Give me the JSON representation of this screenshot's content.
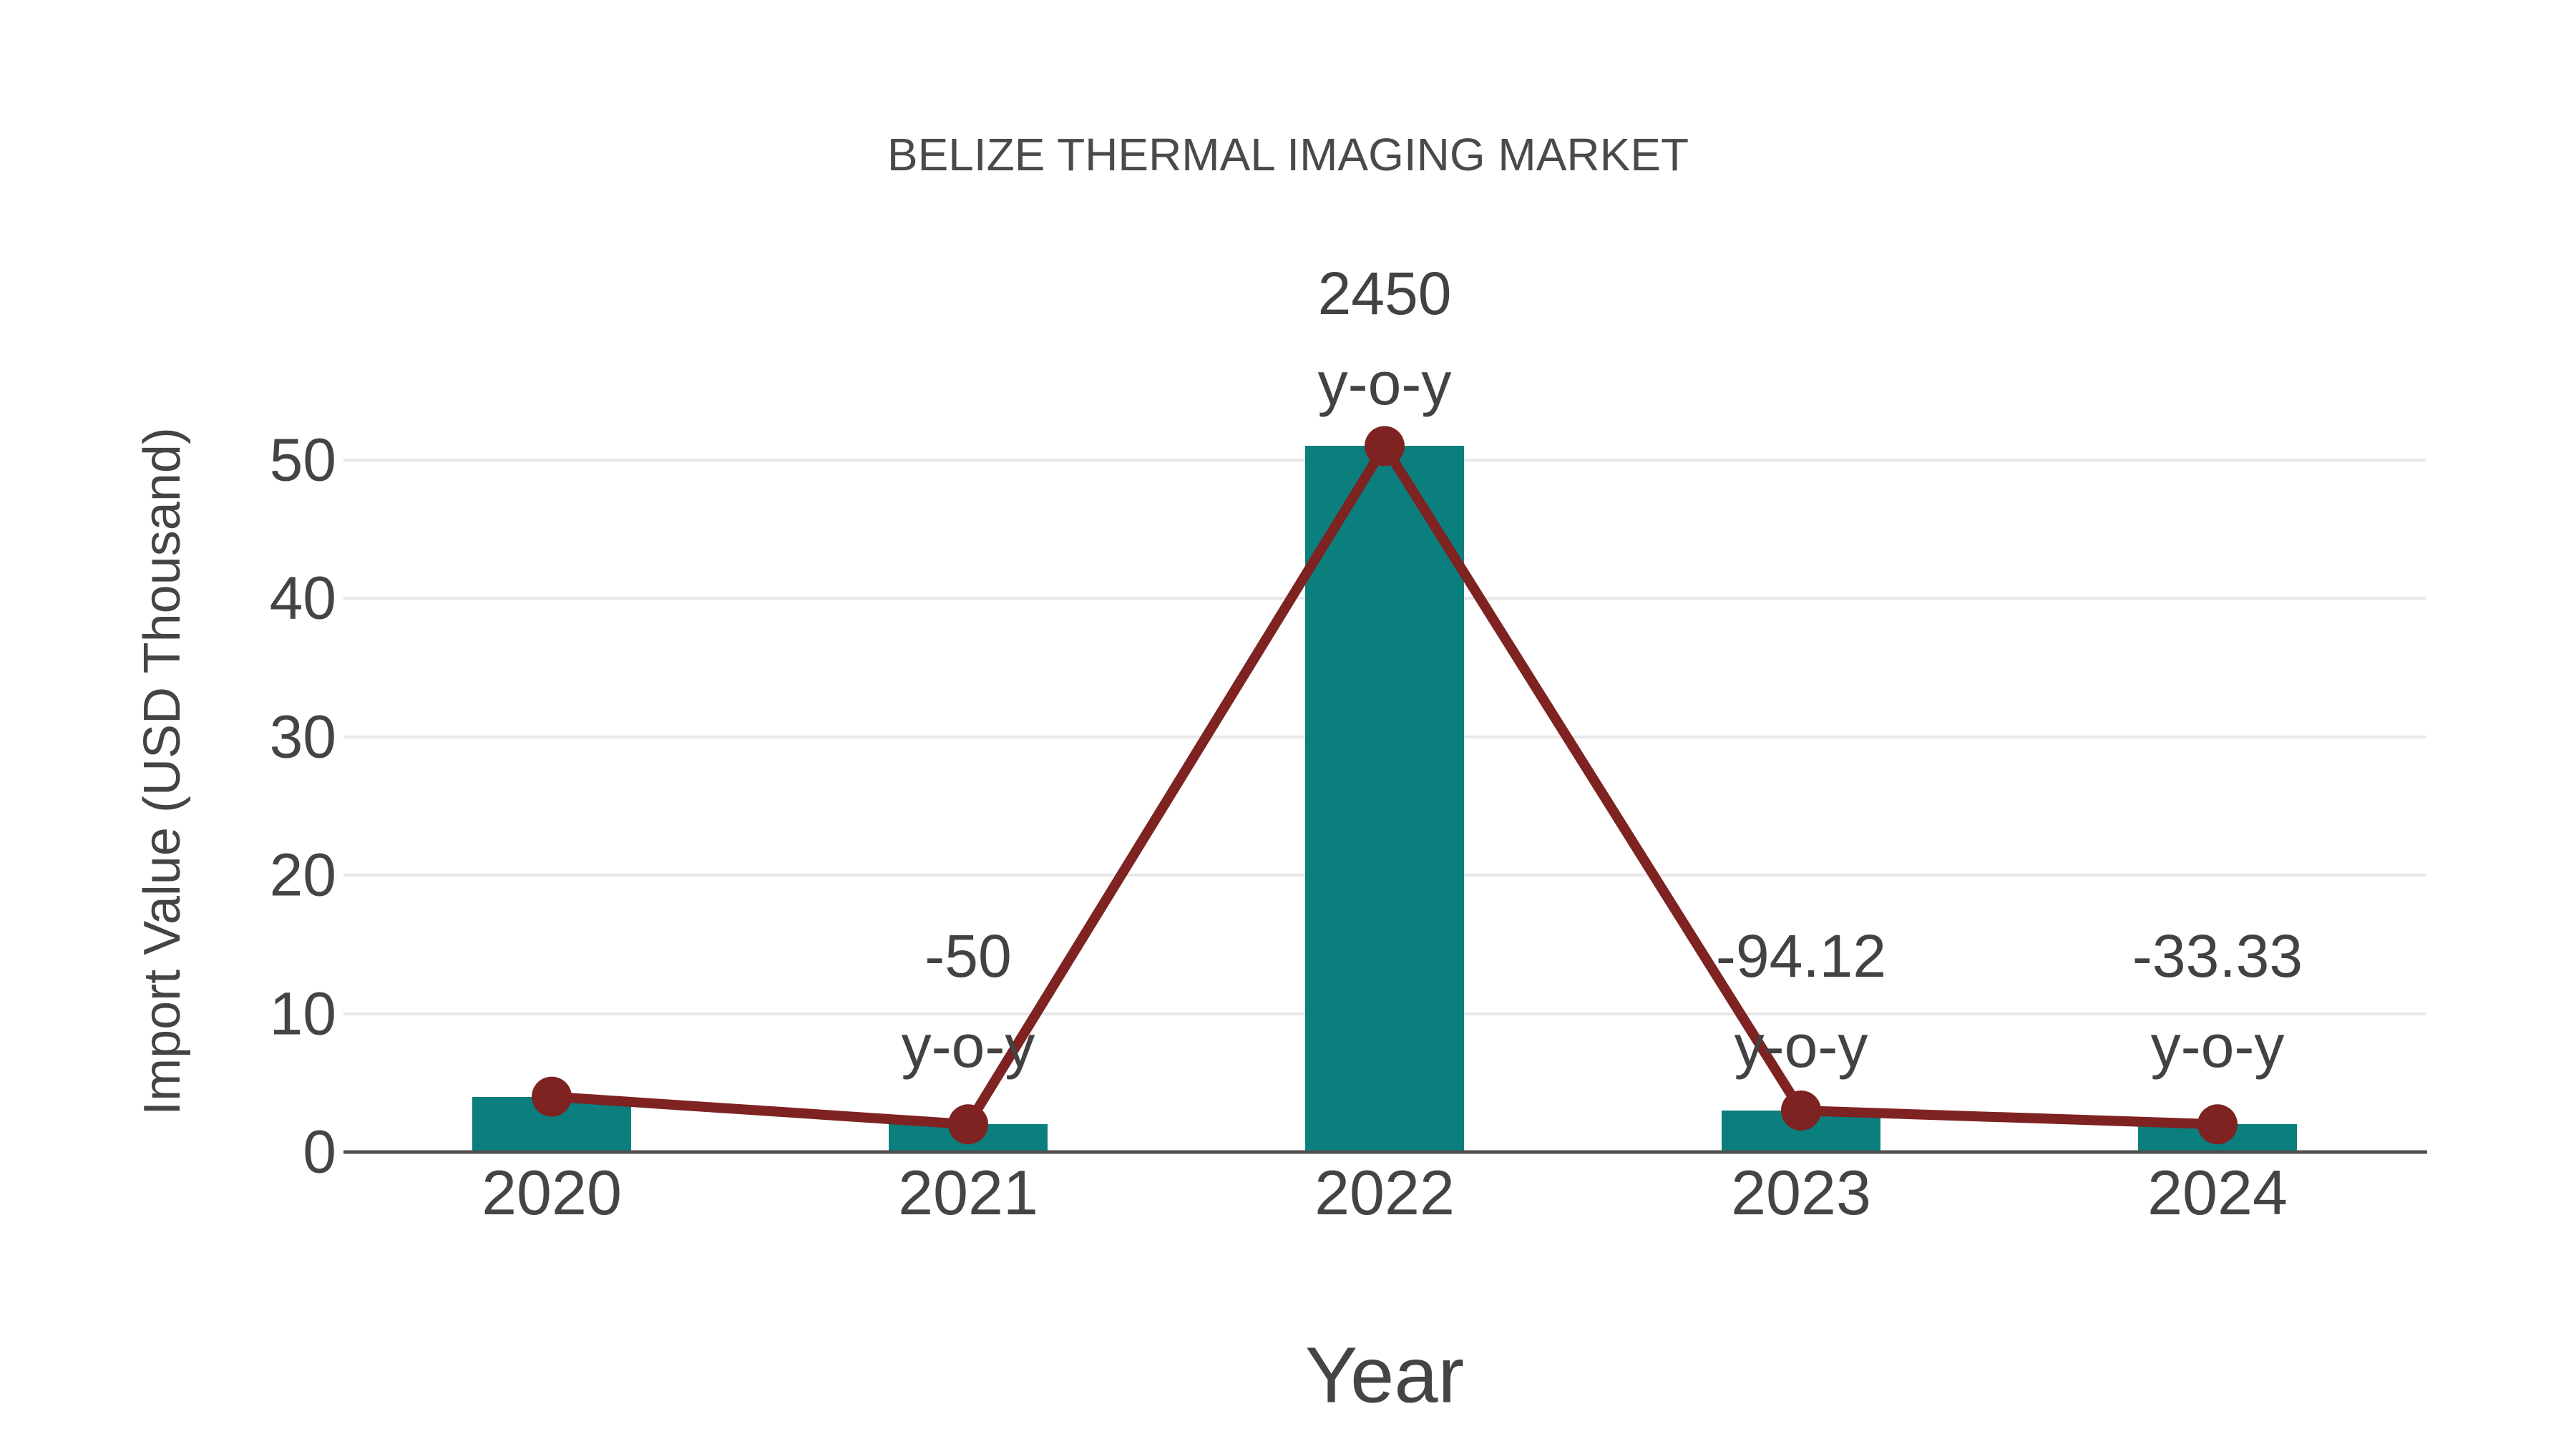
{
  "chart_data": {
    "type": "bar",
    "title": "BELIZE THERMAL IMAGING MARKET",
    "xlabel": "Year",
    "ylabel": "Import Value (USD Thousand)",
    "categories": [
      "2020",
      "2021",
      "2022",
      "2023",
      "2024"
    ],
    "series": [
      {
        "name": "import-value-bars",
        "type": "bar",
        "values": [
          4,
          2,
          51,
          3,
          2
        ],
        "color": "#0a7f7e"
      },
      {
        "name": "import-value-line",
        "type": "line",
        "values": [
          4,
          2,
          51,
          3,
          2
        ],
        "color": "#7e2222"
      }
    ],
    "annotations": [
      {
        "category_index": 1,
        "value_label": "-50",
        "sub_label": "y-o-y"
      },
      {
        "category_index": 2,
        "value_label": "2450",
        "sub_label": "y-o-y"
      },
      {
        "category_index": 3,
        "value_label": "-94.12",
        "sub_label": "y-o-y"
      },
      {
        "category_index": 4,
        "value_label": "-33.33",
        "sub_label": "y-o-y"
      }
    ],
    "yticks": [
      0,
      10,
      20,
      30,
      40,
      50
    ],
    "ylim": [
      0,
      55
    ],
    "grid": true,
    "legend": "none",
    "colors": {
      "bar": "#0a7f7e",
      "line": "#7e2222",
      "marker": "#7e2222",
      "gridline": "#e7e7e7",
      "axis_line": "#4f4f4f",
      "text": "#444444"
    }
  }
}
